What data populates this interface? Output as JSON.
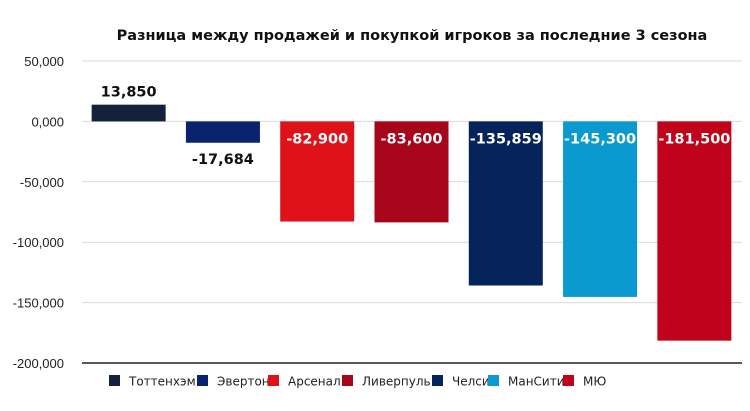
{
  "chart_data": {
    "type": "bar",
    "title": "Разница между продажей и покупкой игроков за последние 3 сезона",
    "xlabel": "",
    "ylabel": "",
    "categories": [
      "Тоттенхэм",
      "Эвертон",
      "Арсенал",
      "Ливерпуль",
      "Челси",
      "МанСити",
      "МЮ"
    ],
    "values": [
      13850,
      -17684,
      -82900,
      -83600,
      -135859,
      -145300,
      -181500
    ],
    "data_labels": [
      "13,850",
      "-17,684",
      "-82,900",
      "-83,600",
      "-135,859",
      "-145,300",
      "-181,500"
    ],
    "colors": [
      "#14213d",
      "#0a2370",
      "#e01219",
      "#a6051a",
      "#05245c",
      "#0a9ad0",
      "#c0021a"
    ],
    "ylim": [
      -200000,
      50000
    ],
    "yticks": [
      50000,
      0,
      -50000,
      -100000,
      -150000,
      -200000
    ],
    "ytick_labels": [
      "50,000",
      "0,000",
      "-50,000",
      "-100,000",
      "-150,000",
      "-200,000"
    ],
    "grid": true,
    "legend": {
      "position": "bottom",
      "entries": [
        "Тоттенхэм",
        "Эвертон",
        "Арсенал",
        "Ливерпуль",
        "Челси",
        "МанСити",
        "МЮ"
      ]
    }
  }
}
